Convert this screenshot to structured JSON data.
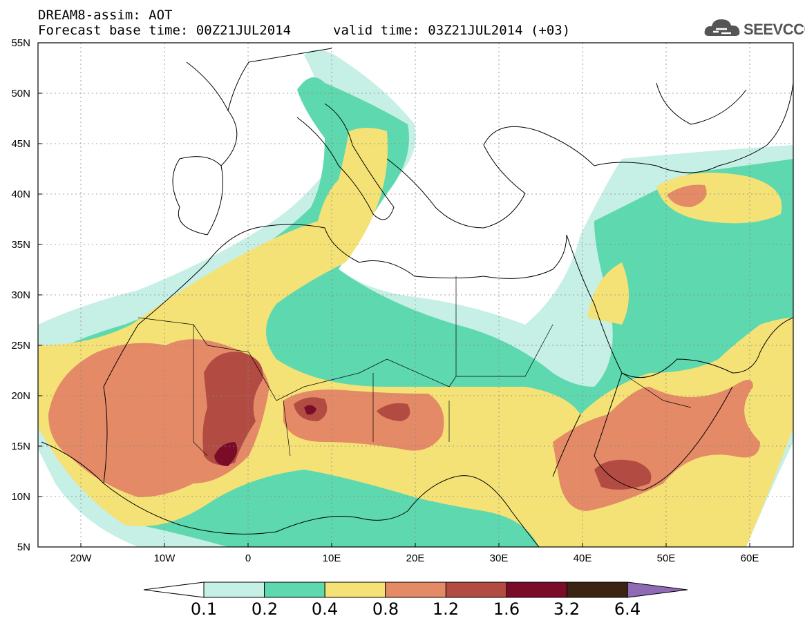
{
  "header": {
    "line1": "DREAM8-assim: AOT",
    "line2": "Forecast base time: 00Z21JUL2014",
    "line3": "valid time: 03Z21JUL2014 (+03)"
  },
  "logo": {
    "text": "SEEVCCC",
    "icon": "cloud-icon"
  },
  "map": {
    "lon_range": [
      -25,
      65
    ],
    "lat_range": [
      5,
      55
    ],
    "lat_ticks": [
      "5N",
      "10N",
      "15N",
      "20N",
      "25N",
      "30N",
      "35N",
      "40N",
      "45N",
      "50N",
      "55N"
    ],
    "lon_ticks": [
      "20W",
      "10W",
      "0",
      "10E",
      "20E",
      "30E",
      "40E",
      "50E",
      "60E"
    ],
    "grid": "dotted"
  },
  "colorbar": {
    "labels": [
      "0.1",
      "0.2",
      "0.4",
      "0.8",
      "1.2",
      "1.6",
      "3.2",
      "6.4"
    ],
    "colors": [
      "#ffffff",
      "#c6efe6",
      "#5ed8ae",
      "#f4e276",
      "#e58a66",
      "#b24c42",
      "#7a0c2a",
      "#3b2414",
      "#8f6bb5"
    ]
  }
}
